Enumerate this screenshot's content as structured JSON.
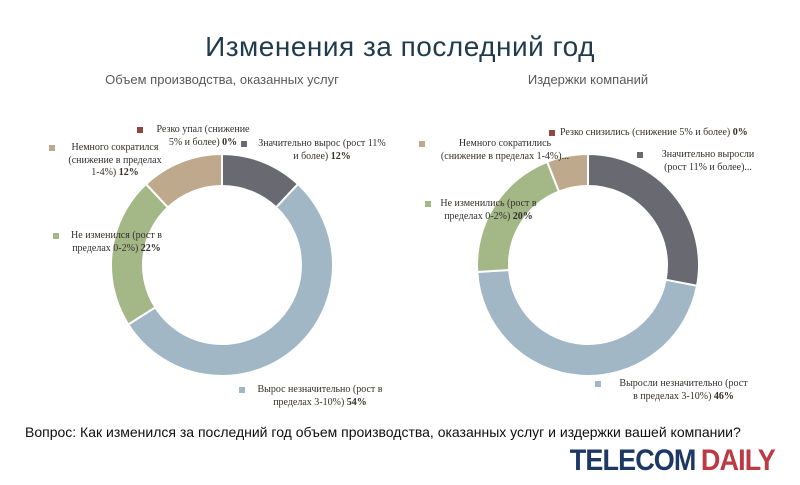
{
  "page": {
    "title": "Изменения за последний год",
    "title_color": "#1f3b4c",
    "question": "Вопрос: Как изменился за последний год объем производства, оказанных услуг и издержки вашей компании?",
    "logo": {
      "telecom": "TELECOM",
      "daily": "DAILY",
      "telecom_color": "#1e3866",
      "daily_color": "#bc3a43"
    }
  },
  "chart_data": [
    {
      "type": "pie",
      "subtype": "donut",
      "hole_ratio": 0.71,
      "legend_position": "callouts",
      "title": "Объем производства, оказанных услуг",
      "segments": [
        {
          "name": "Резко упал (снижение 5% и более)",
          "display": "Резко упал (снижение\n5% и более)",
          "pct": "0%",
          "value": 0,
          "color": "#8a4a41"
        },
        {
          "name": "Значительно вырос (рост 11% и более)",
          "display": "Значительно вырос (рост 11%\nи более)",
          "pct": "12%",
          "value": 12,
          "color": "#696972"
        },
        {
          "name": "Вырос незначительно (рост в пределах 3-10%)",
          "display": "Вырос незначительно (рост в\nпределах 3-10%)",
          "pct": "54%",
          "value": 54,
          "color": "#a1b7c6"
        },
        {
          "name": "Не изменился (рост в пределах 0-2%)",
          "display": "Не изменился (рост в\nпределах 0-2%)",
          "pct": "22%",
          "value": 22,
          "color": "#a4b787"
        },
        {
          "name": "Немного сократился (снижение в пределах 1-4%)",
          "display": "Немного сократился\n(снижение в пределах\n1-4%)",
          "pct": "12%",
          "value": 12,
          "color": "#bfa98c"
        }
      ]
    },
    {
      "type": "pie",
      "subtype": "donut",
      "hole_ratio": 0.71,
      "legend_position": "callouts",
      "title": "Издержки компаний",
      "segments": [
        {
          "name": "Резко снизились (снижение 5% и более)",
          "display": "Резко снизились (снижение 5% и более)",
          "pct": "0%",
          "value": 0,
          "color": "#8a4a41"
        },
        {
          "name": "Значительно выросли (рост 11% и более)",
          "display": "Значительно выросли\n(рост 11% и более)...",
          "pct": "",
          "value": 28,
          "color": "#696972"
        },
        {
          "name": "Выросли незначительно (рост в пределах 3-10%)",
          "display": "Выросли незначительно (рост\nв пределах 3-10%)",
          "pct": "46%",
          "value": 46,
          "color": "#a1b7c6"
        },
        {
          "name": "Не изменились (рост в пределах 0-2%)",
          "display": "Не изменились (рост в\nпределах 0-2%)",
          "pct": "20%",
          "value": 20,
          "color": "#a4b787"
        },
        {
          "name": "Немного сократились (снижение в пределах 1-4%)",
          "display": "Немного сократились\n(снижение в пределах 1-4%)...",
          "pct": "",
          "value": 6,
          "color": "#bfa98c"
        }
      ]
    }
  ]
}
